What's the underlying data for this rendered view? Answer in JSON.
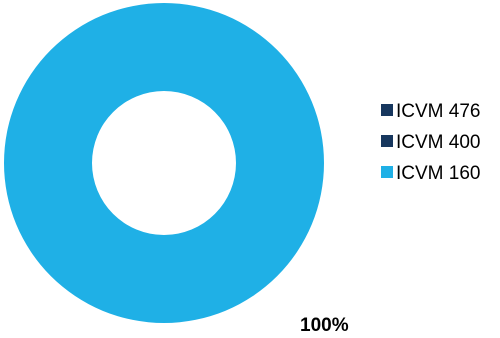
{
  "chart_data": {
    "type": "pie",
    "donut": true,
    "title": "",
    "legend_position": "right",
    "series": [
      {
        "name": "ICVM 476",
        "value": 0,
        "color": "#17375e"
      },
      {
        "name": "ICVM 400",
        "value": 0,
        "color": "#17375e"
      },
      {
        "name": "ICVM 160",
        "value": 100,
        "color": "#1fb0e6"
      }
    ],
    "data_labels": [
      "",
      "",
      "100%"
    ]
  }
}
